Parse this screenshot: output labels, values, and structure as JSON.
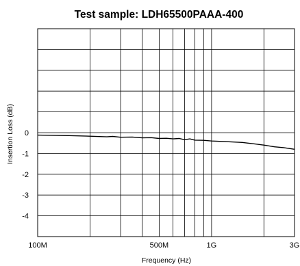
{
  "chart_data": {
    "type": "line",
    "title": "Test sample: LDH65500PAAA-400",
    "xlabel": "Frequency (Hz)",
    "ylabel": "Insertion Loss (dB)",
    "x_scale": "log",
    "xlim": [
      100000000,
      3000000000
    ],
    "ylim": [
      -5,
      5
    ],
    "grid": true,
    "x_ticks": [
      {
        "value": 100000000,
        "label": "100M"
      },
      {
        "value": 500000000,
        "label": "500M"
      },
      {
        "value": 1000000000,
        "label": "1G"
      },
      {
        "value": 3000000000,
        "label": "3G"
      }
    ],
    "x_gridlines": [
      200000000,
      300000000,
      400000000,
      500000000,
      600000000,
      700000000,
      800000000,
      900000000,
      1000000000,
      2000000000
    ],
    "y_ticks": [
      {
        "value": 0,
        "label": "0"
      },
      {
        "value": -1,
        "label": "-1"
      },
      {
        "value": -2,
        "label": "-2"
      },
      {
        "value": -3,
        "label": "-3"
      },
      {
        "value": -4,
        "label": "-4"
      }
    ],
    "y_gridlines": [
      4,
      3,
      2,
      1,
      0,
      -1,
      -2,
      -3,
      -4
    ],
    "series": [
      {
        "color": "#000000",
        "x": [
          100000000,
          150000000,
          200000000,
          250000000,
          270000000,
          300000000,
          350000000,
          400000000,
          450000000,
          500000000,
          550000000,
          600000000,
          650000000,
          700000000,
          750000000,
          800000000,
          900000000,
          1000000000,
          1200000000,
          1500000000,
          1800000000,
          2000000000,
          2300000000,
          2600000000,
          3000000000
        ],
        "y": [
          -0.12,
          -0.14,
          -0.17,
          -0.2,
          -0.18,
          -0.22,
          -0.21,
          -0.25,
          -0.24,
          -0.28,
          -0.27,
          -0.3,
          -0.28,
          -0.34,
          -0.3,
          -0.36,
          -0.37,
          -0.4,
          -0.43,
          -0.47,
          -0.55,
          -0.6,
          -0.68,
          -0.72,
          -0.8
        ]
      }
    ]
  }
}
